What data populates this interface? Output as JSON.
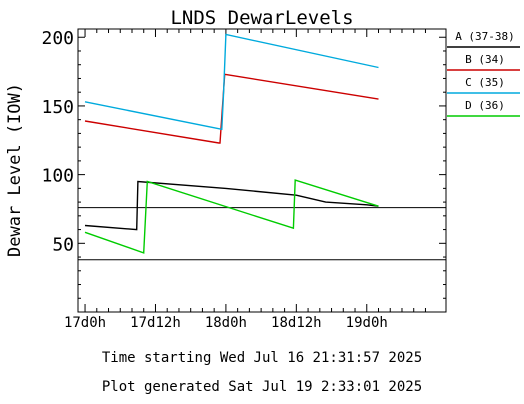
{
  "chart_data": {
    "type": "line",
    "title": "LNDS DewarLevels",
    "ylabel": "Dewar Level (IOW)",
    "xlabel": "",
    "x_unit": "hours from 17d0h",
    "xlim": [
      -1.2,
      61.5
    ],
    "ylim": [
      0,
      206
    ],
    "x_ticks": [
      {
        "value": 0,
        "label": "17d0h"
      },
      {
        "value": 12,
        "label": "17d12h"
      },
      {
        "value": 24,
        "label": "18d0h"
      },
      {
        "value": 36,
        "label": "18d12h"
      },
      {
        "value": 48,
        "label": "19d0h"
      }
    ],
    "y_ticks": [
      {
        "value": 50,
        "label": "50"
      },
      {
        "value": 100,
        "label": "100"
      },
      {
        "value": 150,
        "label": "150"
      },
      {
        "value": 200,
        "label": "200"
      }
    ],
    "hlines": [
      76,
      38
    ],
    "legend_position": "right",
    "grid": false,
    "series": [
      {
        "name": "A (37-38)",
        "color": "#000000",
        "points": [
          [
            0,
            63
          ],
          [
            8.8,
            60
          ],
          [
            9.0,
            95
          ],
          [
            24,
            90
          ],
          [
            36,
            85
          ],
          [
            41,
            80
          ],
          [
            48,
            78
          ],
          [
            50,
            77
          ]
        ]
      },
      {
        "name": "B (34)",
        "color": "#cc0000",
        "points": [
          [
            0,
            139
          ],
          [
            22.8,
            123
          ],
          [
            23.0,
            123
          ],
          [
            23.8,
            173
          ],
          [
            50,
            155
          ]
        ]
      },
      {
        "name": "C (35)",
        "color": "#00aadd",
        "points": [
          [
            0,
            153
          ],
          [
            23.3,
            133
          ],
          [
            23.6,
            160
          ],
          [
            24.0,
            202
          ],
          [
            50,
            178
          ]
        ]
      },
      {
        "name": "D (36)",
        "color": "#00cc00",
        "points": [
          [
            0,
            58
          ],
          [
            10.0,
            43
          ],
          [
            10.6,
            95
          ],
          [
            35.5,
            61
          ],
          [
            35.8,
            96
          ],
          [
            50,
            77
          ]
        ]
      }
    ]
  },
  "footer": {
    "time_starting": "Time starting Wed Jul 16  21:31:57 2025",
    "plot_generated": "Plot generated Sat Jul 19   2:33:01 2025"
  }
}
